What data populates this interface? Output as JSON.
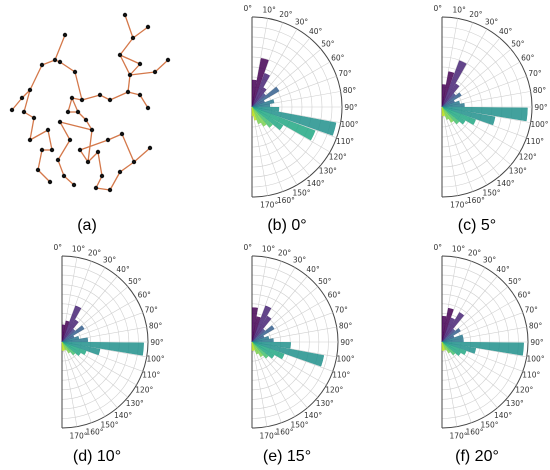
{
  "figure": {
    "captions": [
      "(a)",
      "(b) 0°",
      "(c) 5°",
      "(d) 10°",
      "(e) 15°",
      "(f) 20°"
    ]
  },
  "chart_data": [
    {
      "type": "network",
      "panel": "(a)",
      "colors": {
        "edge": "#d4784a",
        "node": "#111111"
      }
    },
    {
      "type": "polar_bar",
      "panel": "(b) 0°",
      "theta_range_deg": [
        0,
        180
      ],
      "tick_step_deg": 10,
      "tick_labels": [
        "0°",
        "10°",
        "20°",
        "30°",
        "40°",
        "50°",
        "60°",
        "70°",
        "80°",
        "90°",
        "100°",
        "110°",
        "120°",
        "130°",
        "140°",
        "150°",
        "160°",
        "170°"
      ],
      "angles_deg": [
        5,
        15,
        25,
        35,
        45,
        55,
        65,
        75,
        85,
        95,
        105,
        115,
        125,
        135,
        145,
        155,
        165,
        175
      ],
      "values": [
        0.3,
        0.55,
        0.4,
        0.25,
        0.2,
        0.35,
        0.15,
        0.25,
        0.2,
        0.3,
        0.95,
        0.75,
        0.4,
        0.3,
        0.25,
        0.2,
        0.15,
        0.1
      ]
    },
    {
      "type": "polar_bar",
      "panel": "(c) 5°",
      "theta_range_deg": [
        0,
        180
      ],
      "tick_step_deg": 10,
      "tick_labels": [
        "0°",
        "10°",
        "20°",
        "30°",
        "40°",
        "50°",
        "60°",
        "70°",
        "80°",
        "90°",
        "100°",
        "110°",
        "120°",
        "130°",
        "140°",
        "150°",
        "160°",
        "170°"
      ],
      "angles_deg": [
        5,
        15,
        25,
        35,
        45,
        55,
        65,
        75,
        85,
        95,
        105,
        115,
        125,
        135,
        145,
        155,
        165,
        175
      ],
      "values": [
        0.25,
        0.4,
        0.55,
        0.3,
        0.2,
        0.25,
        0.15,
        0.2,
        0.25,
        0.95,
        0.6,
        0.4,
        0.3,
        0.25,
        0.2,
        0.15,
        0.1,
        0.1
      ]
    },
    {
      "type": "polar_bar",
      "panel": "(d) 10°",
      "theta_range_deg": [
        0,
        180
      ],
      "tick_step_deg": 10,
      "tick_labels": [
        "0°",
        "10°",
        "20°",
        "30°",
        "40°",
        "50°",
        "60°",
        "70°",
        "80°",
        "90°",
        "100°",
        "110°",
        "120°",
        "130°",
        "140°",
        "150°",
        "160°",
        "170°"
      ],
      "angles_deg": [
        5,
        15,
        25,
        35,
        45,
        55,
        65,
        75,
        85,
        95,
        105,
        115,
        125,
        135,
        145,
        155,
        165,
        175
      ],
      "values": [
        0.2,
        0.25,
        0.45,
        0.3,
        0.2,
        0.3,
        0.15,
        0.2,
        0.3,
        0.95,
        0.45,
        0.3,
        0.25,
        0.2,
        0.15,
        0.1,
        0.1,
        0.1
      ]
    },
    {
      "type": "polar_bar",
      "panel": "(e) 15°",
      "theta_range_deg": [
        0,
        180
      ],
      "tick_step_deg": 10,
      "tick_labels": [
        "0°",
        "10°",
        "20°",
        "30°",
        "40°",
        "50°",
        "60°",
        "70°",
        "80°",
        "90°",
        "100°",
        "110°",
        "120°",
        "130°",
        "140°",
        "150°",
        "160°",
        "170°"
      ],
      "angles_deg": [
        5,
        15,
        25,
        35,
        45,
        55,
        65,
        75,
        85,
        95,
        105,
        115,
        125,
        135,
        145,
        155,
        165,
        175
      ],
      "values": [
        0.4,
        0.3,
        0.45,
        0.35,
        0.2,
        0.3,
        0.15,
        0.2,
        0.25,
        0.45,
        0.85,
        0.4,
        0.3,
        0.25,
        0.2,
        0.15,
        0.1,
        0.1
      ]
    },
    {
      "type": "polar_bar",
      "panel": "(f) 20°",
      "theta_range_deg": [
        0,
        180
      ],
      "tick_step_deg": 10,
      "tick_labels": [
        "0°",
        "10°",
        "20°",
        "30°",
        "40°",
        "50°",
        "60°",
        "70°",
        "80°",
        "90°",
        "100°",
        "110°",
        "120°",
        "130°",
        "140°",
        "150°",
        "160°",
        "170°"
      ],
      "angles_deg": [
        5,
        15,
        25,
        35,
        45,
        55,
        65,
        75,
        85,
        95,
        105,
        115,
        125,
        135,
        145,
        155,
        165,
        175
      ],
      "values": [
        0.3,
        0.4,
        0.3,
        0.4,
        0.2,
        0.25,
        0.15,
        0.25,
        0.25,
        0.95,
        0.4,
        0.3,
        0.25,
        0.2,
        0.15,
        0.1,
        0.1,
        0.1
      ]
    }
  ]
}
